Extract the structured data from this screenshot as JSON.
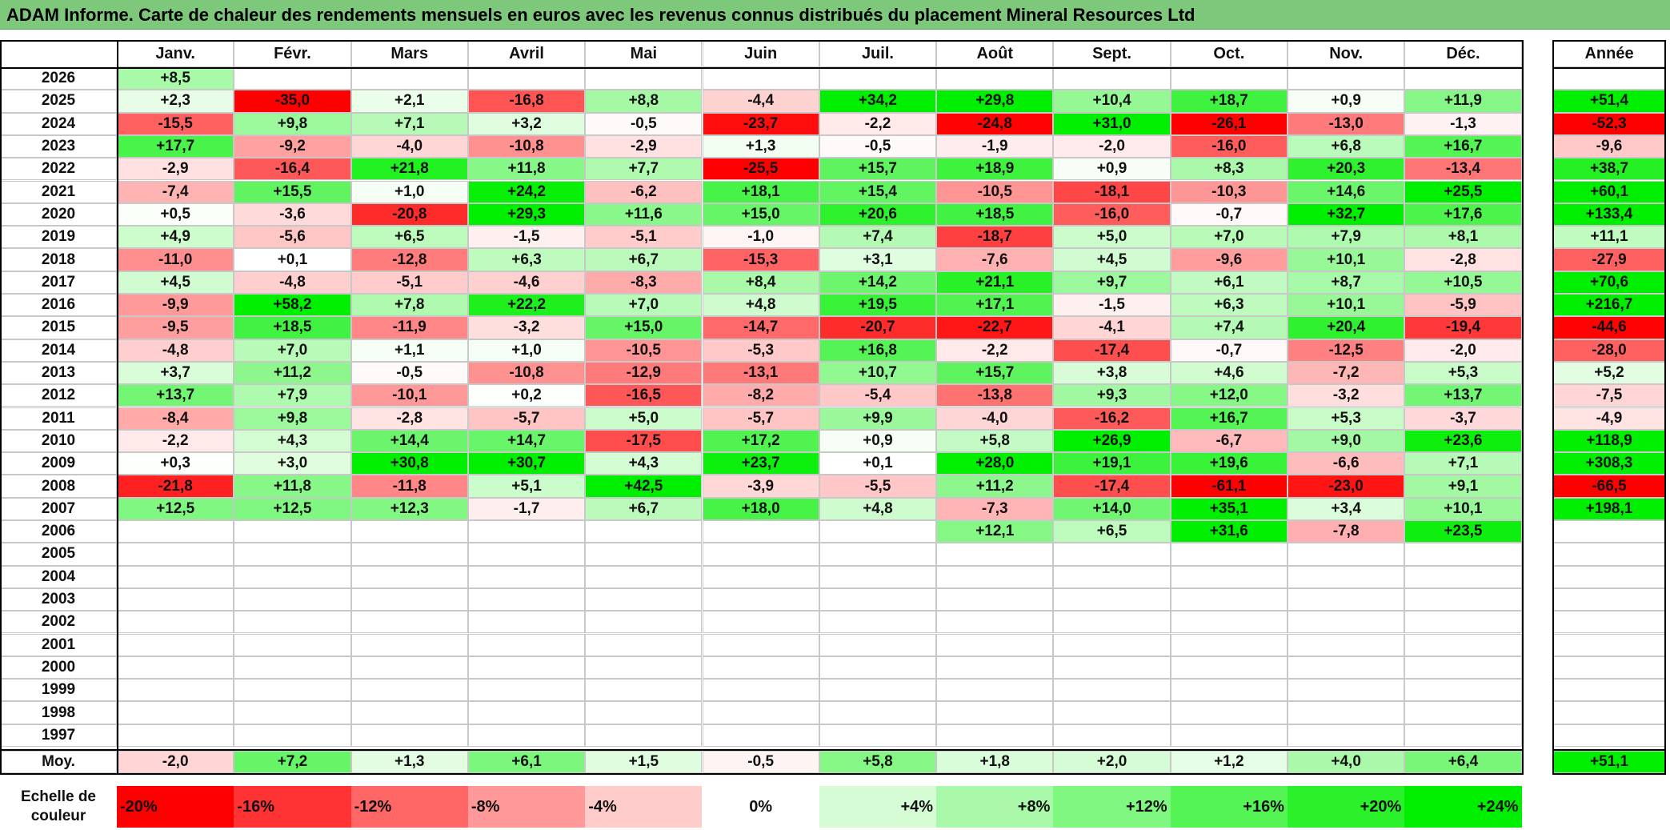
{
  "title": "ADAM Informe. Carte de chaleur des rendements mensuels en euros avec les revenus connus distribués du placement Mineral Resources Ltd",
  "months": [
    "Janv.",
    "Févr.",
    "Mars",
    "Avril",
    "Mai",
    "Juin",
    "Juil.",
    "Août",
    "Sept.",
    "Oct.",
    "Nov.",
    "Déc."
  ],
  "year_header": "Année",
  "avg_label": "Moy.",
  "scale_label": "Echelle de couleur",
  "chart_data": {
    "type": "heatmap",
    "title": "ADAM Informe. Carte de chaleur des rendements mensuels en euros avec les revenus connus distribués du placement Mineral Resources Ltd",
    "columns": [
      "Janv.",
      "Févr.",
      "Mars",
      "Avril",
      "Mai",
      "Juin",
      "Juil.",
      "Août",
      "Sept.",
      "Oct.",
      "Nov.",
      "Déc."
    ],
    "rows": [
      {
        "year": "2026",
        "values": [
          "+8,5",
          "",
          "",
          "",
          "",
          "",
          "",
          "",
          "",
          "",
          "",
          ""
        ],
        "annual": ""
      },
      {
        "year": "2025",
        "values": [
          "+2,3",
          "-35,0",
          "+2,1",
          "-16,8",
          "+8,8",
          "-4,4",
          "+34,2",
          "+29,8",
          "+10,4",
          "+18,7",
          "+0,9",
          "+11,9"
        ],
        "annual": "+51,4"
      },
      {
        "year": "2024",
        "values": [
          "-15,5",
          "+9,8",
          "+7,1",
          "+3,2",
          "-0,5",
          "-23,7",
          "-2,2",
          "-24,8",
          "+31,0",
          "-26,1",
          "-13,0",
          "-1,3"
        ],
        "annual": "-52,3"
      },
      {
        "year": "2023",
        "values": [
          "+17,7",
          "-9,2",
          "-4,0",
          "-10,8",
          "-2,9",
          "+1,3",
          "-0,5",
          "-1,9",
          "-2,0",
          "-16,0",
          "+6,8",
          "+16,7"
        ],
        "annual": "-9,6"
      },
      {
        "year": "2022",
        "values": [
          "-2,9",
          "-16,4",
          "+21,8",
          "+11,8",
          "+7,7",
          "-25,5",
          "+15,7",
          "+18,9",
          "+0,9",
          "+8,3",
          "+20,3",
          "-13,4"
        ],
        "annual": "+38,7"
      },
      {
        "year": "2021",
        "values": [
          "-7,4",
          "+15,5",
          "+1,0",
          "+24,2",
          "-6,2",
          "+18,1",
          "+15,4",
          "-10,5",
          "-18,1",
          "-10,3",
          "+14,6",
          "+25,5"
        ],
        "annual": "+60,1"
      },
      {
        "year": "2020",
        "values": [
          "+0,5",
          "-3,6",
          "-20,8",
          "+29,3",
          "+11,6",
          "+15,0",
          "+20,6",
          "+18,5",
          "-16,0",
          "-0,7",
          "+32,7",
          "+17,6"
        ],
        "annual": "+133,4"
      },
      {
        "year": "2019",
        "values": [
          "+4,9",
          "-5,6",
          "+6,5",
          "-1,5",
          "-5,1",
          "-1,0",
          "+7,4",
          "-18,7",
          "+5,0",
          "+7,0",
          "+7,9",
          "+8,1"
        ],
        "annual": "+11,1"
      },
      {
        "year": "2018",
        "values": [
          "-11,0",
          "+0,1",
          "-12,8",
          "+6,3",
          "+6,7",
          "-15,3",
          "+3,1",
          "-7,6",
          "+4,5",
          "-9,6",
          "+10,1",
          "-2,8"
        ],
        "annual": "-27,9"
      },
      {
        "year": "2017",
        "values": [
          "+4,5",
          "-4,8",
          "-5,1",
          "-4,6",
          "-8,3",
          "+8,4",
          "+14,2",
          "+21,1",
          "+9,7",
          "+6,1",
          "+8,7",
          "+10,5"
        ],
        "annual": "+70,6"
      },
      {
        "year": "2016",
        "values": [
          "-9,9",
          "+58,2",
          "+7,8",
          "+22,2",
          "+7,0",
          "+4,8",
          "+19,5",
          "+17,1",
          "-1,5",
          "+6,3",
          "+10,1",
          "-5,9"
        ],
        "annual": "+216,7"
      },
      {
        "year": "2015",
        "values": [
          "-9,5",
          "+18,5",
          "-11,9",
          "-3,2",
          "+15,0",
          "-14,7",
          "-20,7",
          "-22,7",
          "-4,1",
          "+7,4",
          "+20,4",
          "-19,4"
        ],
        "annual": "-44,6"
      },
      {
        "year": "2014",
        "values": [
          "-4,8",
          "+7,0",
          "+1,1",
          "+1,0",
          "-10,5",
          "-5,3",
          "+16,8",
          "-2,2",
          "-17,4",
          "-0,7",
          "-12,5",
          "-2,0"
        ],
        "annual": "-28,0"
      },
      {
        "year": "2013",
        "values": [
          "+3,7",
          "+11,2",
          "-0,5",
          "-10,8",
          "-12,9",
          "-13,1",
          "+10,7",
          "+15,7",
          "+3,8",
          "+4,6",
          "-7,2",
          "+5,3"
        ],
        "annual": "+5,2"
      },
      {
        "year": "2012",
        "values": [
          "+13,7",
          "+7,9",
          "-10,1",
          "+0,2",
          "-16,5",
          "-8,2",
          "-5,4",
          "-13,8",
          "+9,3",
          "+12,0",
          "-3,2",
          "+13,7"
        ],
        "annual": "-7,5"
      },
      {
        "year": "2011",
        "values": [
          "-8,4",
          "+9,8",
          "-2,8",
          "-5,7",
          "+5,0",
          "-5,7",
          "+9,9",
          "-4,0",
          "-16,2",
          "+16,7",
          "+5,3",
          "-3,7"
        ],
        "annual": "-4,9"
      },
      {
        "year": "2010",
        "values": [
          "-2,2",
          "+4,3",
          "+14,4",
          "+14,7",
          "-17,5",
          "+17,2",
          "+0,9",
          "+5,8",
          "+26,9",
          "-6,7",
          "+9,0",
          "+23,6"
        ],
        "annual": "+118,9"
      },
      {
        "year": "2009",
        "values": [
          "+0,3",
          "+3,0",
          "+30,8",
          "+30,7",
          "+4,3",
          "+23,7",
          "+0,1",
          "+28,0",
          "+19,1",
          "+19,6",
          "-6,6",
          "+7,1"
        ],
        "annual": "+308,3"
      },
      {
        "year": "2008",
        "values": [
          "-21,8",
          "+11,8",
          "-11,8",
          "+5,1",
          "+42,5",
          "-3,9",
          "-5,5",
          "+11,2",
          "-17,4",
          "-61,1",
          "-23,0",
          "+9,1"
        ],
        "annual": "-66,5"
      },
      {
        "year": "2007",
        "values": [
          "+12,5",
          "+12,5",
          "+12,3",
          "-1,7",
          "+6,7",
          "+18,0",
          "+4,8",
          "-7,3",
          "+14,0",
          "+35,1",
          "+3,4",
          "+10,1"
        ],
        "annual": "+198,1"
      },
      {
        "year": "2006",
        "values": [
          "",
          "",
          "",
          "",
          "",
          "",
          "",
          "+12,1",
          "+6,5",
          "+31,6",
          "-7,8",
          "+23,5"
        ],
        "annual": ""
      },
      {
        "year": "2005",
        "values": [
          "",
          "",
          "",
          "",
          "",
          "",
          "",
          "",
          "",
          "",
          "",
          ""
        ],
        "annual": ""
      },
      {
        "year": "2004",
        "values": [
          "",
          "",
          "",
          "",
          "",
          "",
          "",
          "",
          "",
          "",
          "",
          ""
        ],
        "annual": ""
      },
      {
        "year": "2003",
        "values": [
          "",
          "",
          "",
          "",
          "",
          "",
          "",
          "",
          "",
          "",
          "",
          ""
        ],
        "annual": ""
      },
      {
        "year": "2002",
        "values": [
          "",
          "",
          "",
          "",
          "",
          "",
          "",
          "",
          "",
          "",
          "",
          ""
        ],
        "annual": ""
      },
      {
        "year": "2001",
        "values": [
          "",
          "",
          "",
          "",
          "",
          "",
          "",
          "",
          "",
          "",
          "",
          ""
        ],
        "annual": ""
      },
      {
        "year": "2000",
        "values": [
          "",
          "",
          "",
          "",
          "",
          "",
          "",
          "",
          "",
          "",
          "",
          ""
        ],
        "annual": ""
      },
      {
        "year": "1999",
        "values": [
          "",
          "",
          "",
          "",
          "",
          "",
          "",
          "",
          "",
          "",
          "",
          ""
        ],
        "annual": ""
      },
      {
        "year": "1998",
        "values": [
          "",
          "",
          "",
          "",
          "",
          "",
          "",
          "",
          "",
          "",
          "",
          ""
        ],
        "annual": ""
      },
      {
        "year": "1997",
        "values": [
          "",
          "",
          "",
          "",
          "",
          "",
          "",
          "",
          "",
          "",
          "",
          ""
        ],
        "annual": ""
      }
    ],
    "averages": [
      "-2,0",
      "+7,2",
      "+1,3",
      "+6,1",
      "+1,5",
      "-0,5",
      "+5,8",
      "+1,8",
      "+2,0",
      "+1,2",
      "+4,0",
      "+6,4"
    ],
    "average_annual": "+51,1",
    "scale": [
      "-20%",
      "-16%",
      "-12%",
      "-8%",
      "-4%",
      "0%",
      "+4%",
      "+8%",
      "+12%",
      "+16%",
      "+20%",
      "+24%"
    ],
    "scale_range": [
      -20,
      24
    ],
    "colors": {
      "strong_negative": "#ff0000",
      "strong_positive": "#00ee00",
      "neutral": "#ffffff",
      "title_bar": "#7dc87a"
    }
  }
}
